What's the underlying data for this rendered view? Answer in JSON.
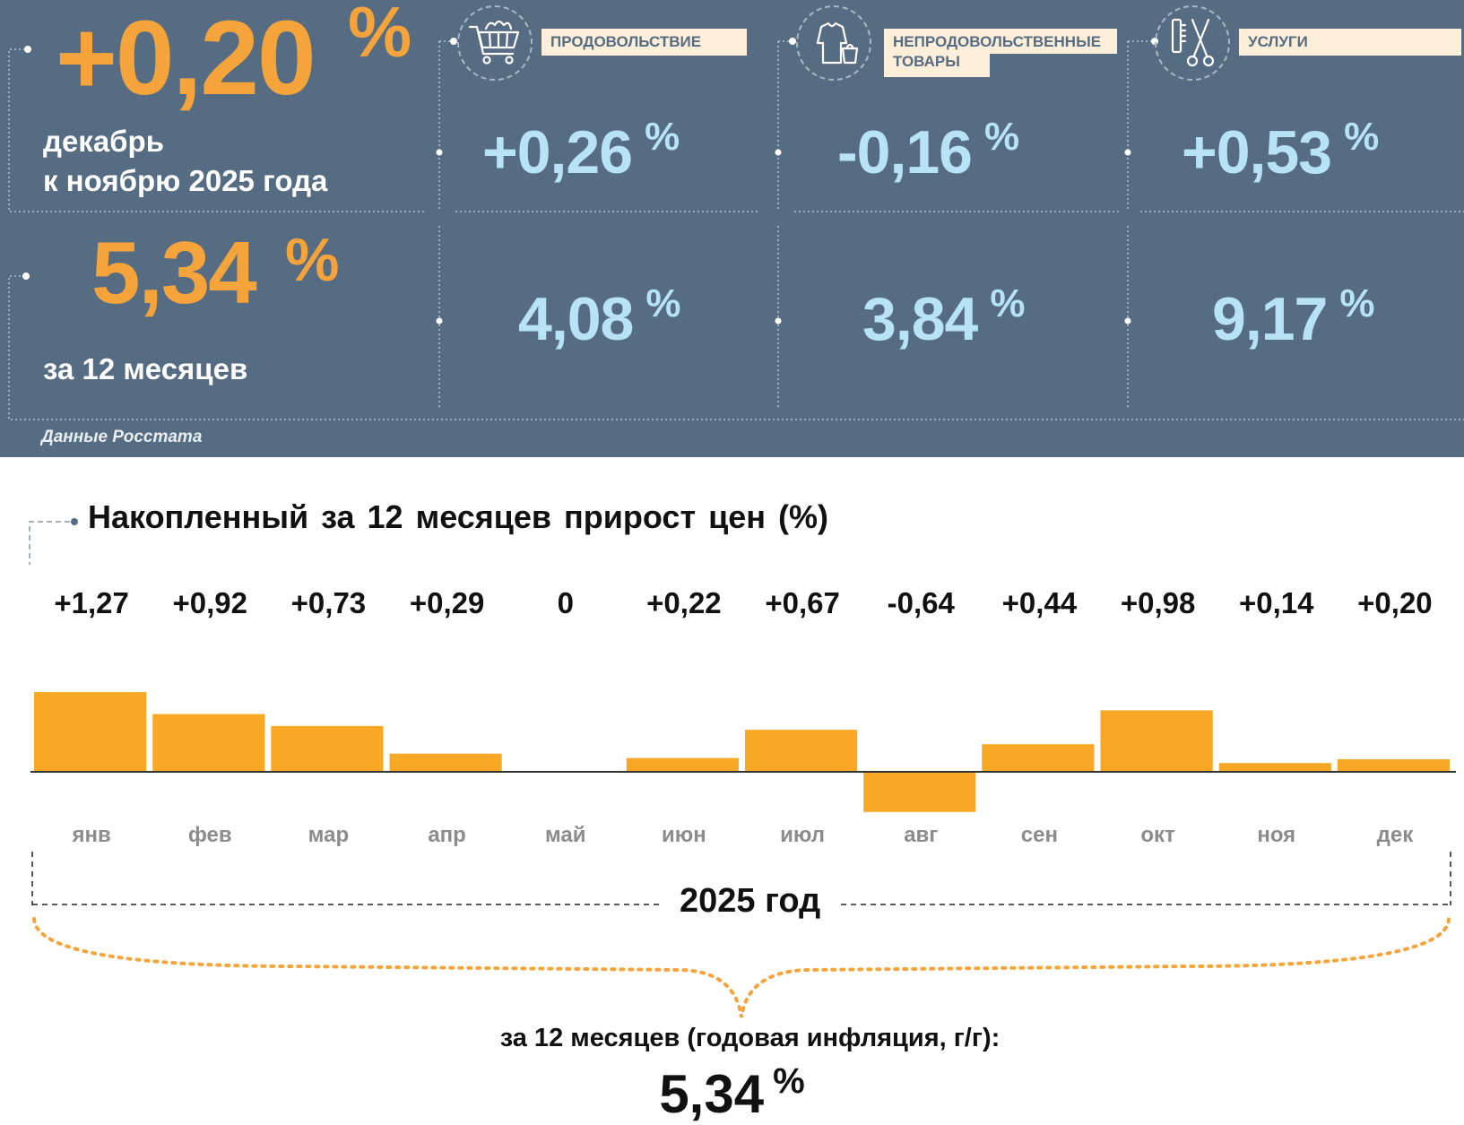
{
  "monthly": {
    "value": "+0,20",
    "percent": "%",
    "label_line1": "декабрь",
    "label_line2": "к ноябрю 2025 года"
  },
  "annual": {
    "value": "5,34",
    "percent": "%",
    "label": "за 12 месяцев"
  },
  "categories": [
    {
      "name": "ПРОДОВОЛЬСТВИЕ",
      "icon": "shopping-cart-icon",
      "monthly": "+0,26",
      "annual": "4,08"
    },
    {
      "name_line1": "НЕПРОДОВОЛЬСТВЕННЫЕ",
      "name_line2": "ТОВАРЫ",
      "icon": "clothing-bag-icon",
      "monthly": "-0,16",
      "annual": "3,84"
    },
    {
      "name": "УСЛУГИ",
      "icon": "scissors-comb-icon",
      "monthly": "+0,53",
      "annual": "9,17"
    }
  ],
  "percent_sign": "%",
  "source": "Данные Росстата",
  "chart_data": {
    "type": "bar",
    "title": "Накопленный за 12 месяцев прирост цен (%)",
    "categories": [
      "янв",
      "фев",
      "мар",
      "апр",
      "май",
      "июн",
      "июл",
      "авг",
      "сен",
      "окт",
      "ноя",
      "дек"
    ],
    "values": [
      1.27,
      0.92,
      0.73,
      0.29,
      0,
      0.22,
      0.67,
      -0.64,
      0.44,
      0.98,
      0.14,
      0.2
    ],
    "value_labels": [
      "+1,27",
      "+0,92",
      "+0,73",
      "+0,29",
      "0",
      "+0,22",
      "+0,67",
      "-0,64",
      "+0,44",
      "+0,98",
      "+0,14",
      "+0,20"
    ],
    "bar_color": "#f9a825",
    "year_label": "2025 год",
    "annual_label": "за 12 месяцев (годовая инфляция, г/г):",
    "annual_value": "5,34"
  },
  "colors": {
    "panel": "#566c82",
    "accent_orange": "#f4a43a",
    "value_blue": "#b7e3f5",
    "tag_bg": "#fdeed9"
  }
}
